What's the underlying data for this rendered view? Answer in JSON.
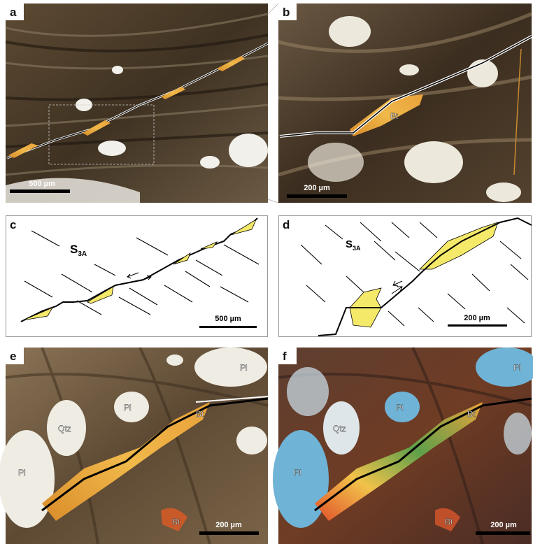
{
  "figure": {
    "panels": [
      {
        "label": "a",
        "scale_bar": "500 µm"
      },
      {
        "label": "b",
        "scale_bar": "200 µm",
        "annotations": [
          "Bt"
        ]
      },
      {
        "label": "c",
        "scale_bar": "500 µm",
        "foliation": {
          "text": "S",
          "subscript": "3A"
        }
      },
      {
        "label": "d",
        "scale_bar": "200 µm",
        "foliation": {
          "text": "S",
          "subscript": "3A"
        }
      },
      {
        "label": "e",
        "scale_bar": "200 µm",
        "annotations": [
          "Pl",
          "Pl",
          "Qtz",
          "Pl",
          "Bt",
          "Bt"
        ]
      },
      {
        "label": "f",
        "scale_bar": "200 µm",
        "annotations": [
          "Pl",
          "Pl",
          "Qtz",
          "Pl",
          "Bt",
          "Bt"
        ]
      }
    ]
  }
}
